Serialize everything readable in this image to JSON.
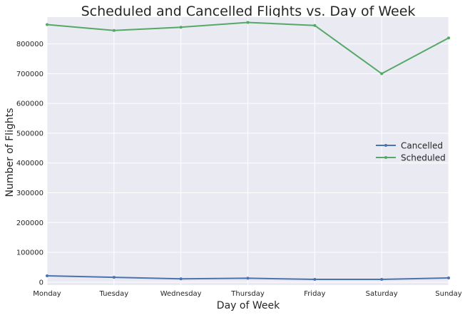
{
  "chart_data": {
    "type": "line",
    "title": "Scheduled and Cancelled Flights vs. Day of Week",
    "xlabel": "Day of Week",
    "ylabel": "Number of Flights",
    "categories": [
      "Monday",
      "Tuesday",
      "Wednesday",
      "Thursday",
      "Friday",
      "Saturday",
      "Sunday"
    ],
    "yticks": [
      0,
      100000,
      200000,
      300000,
      400000,
      500000,
      600000,
      700000,
      800000
    ],
    "ylim": [
      -10000,
      890000
    ],
    "grid": true,
    "legend_position": "center-right",
    "series": [
      {
        "name": "Cancelled",
        "color": "#4c72b0",
        "values": [
          21000,
          16000,
          11000,
          13000,
          9000,
          9000,
          14000
        ]
      },
      {
        "name": "Scheduled",
        "color": "#55a868",
        "values": [
          865000,
          845000,
          856000,
          872000,
          862000,
          700000,
          820000
        ]
      }
    ],
    "background": "#eaeaf2"
  }
}
